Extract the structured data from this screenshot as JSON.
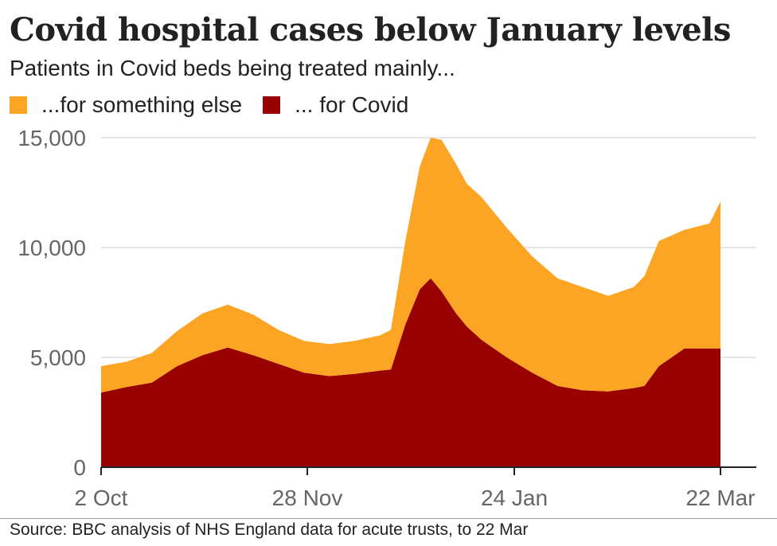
{
  "chart_data": {
    "type": "area",
    "title": "Covid hospital cases below January levels",
    "subtitle": "Patients in Covid beds being treated mainly...",
    "stacked": true,
    "x_ticks": [
      "2 Oct",
      "28 Nov",
      "24 Jan",
      "22 Mar"
    ],
    "y_ticks": [
      "0",
      "5,000",
      "10,000",
      "15,000"
    ],
    "ylim": [
      0,
      15000
    ],
    "grid": true,
    "legend_placement": "top-left",
    "x": [
      "2021-10-02",
      "2021-10-09",
      "2021-10-16",
      "2021-10-23",
      "2021-10-30",
      "2021-11-06",
      "2021-11-13",
      "2021-11-20",
      "2021-11-27",
      "2021-12-04",
      "2021-12-11",
      "2021-12-18",
      "2021-12-21",
      "2021-12-25",
      "2021-12-29",
      "2022-01-01",
      "2022-01-04",
      "2022-01-08",
      "2022-01-11",
      "2022-01-15",
      "2022-01-22",
      "2022-01-29",
      "2022-02-05",
      "2022-02-12",
      "2022-02-19",
      "2022-02-26",
      "2022-03-01",
      "2022-03-05",
      "2022-03-12",
      "2022-03-19",
      "2022-03-22"
    ],
    "series": [
      {
        "name": "... for Covid",
        "color": "#990000",
        "values": [
          3400,
          3650,
          3850,
          4600,
          5100,
          5450,
          5100,
          4700,
          4300,
          4150,
          4250,
          4400,
          4450,
          6500,
          8100,
          8600,
          8000,
          7000,
          6400,
          5800,
          5000,
          4300,
          3700,
          3500,
          3450,
          3600,
          3700,
          4600,
          5400,
          5400,
          5400
        ]
      },
      {
        "name": "...for something else",
        "color": "#fca423",
        "values": [
          1200,
          1150,
          1350,
          1600,
          1900,
          1950,
          1850,
          1550,
          1450,
          1450,
          1500,
          1600,
          1800,
          3800,
          5600,
          6400,
          6900,
          6800,
          6500,
          6500,
          5900,
          5300,
          4900,
          4700,
          4350,
          4600,
          5000,
          5700,
          5400,
          5700,
          6700
        ]
      }
    ],
    "source": "Source: BBC analysis of NHS England data for acute trusts, to 22 Mar"
  }
}
